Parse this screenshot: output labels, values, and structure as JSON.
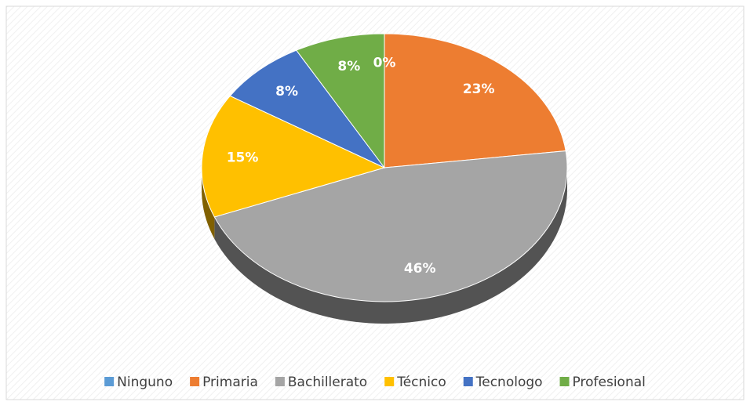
{
  "chart_data": {
    "type": "pie",
    "categories": [
      "Ninguno",
      "Primaria",
      "Bachillerato",
      "Técnico",
      "Tecnologo",
      "Profesional"
    ],
    "values": [
      0,
      23,
      46,
      15,
      8,
      8
    ],
    "value_labels": [
      "0%",
      "23%",
      "46%",
      "15%",
      "8%",
      "8%"
    ],
    "colors": [
      "#5b9bd5",
      "#ed7d31",
      "#a5a5a5",
      "#ffc000",
      "#4472c4",
      "#70ad47"
    ],
    "legend": "bottom"
  }
}
